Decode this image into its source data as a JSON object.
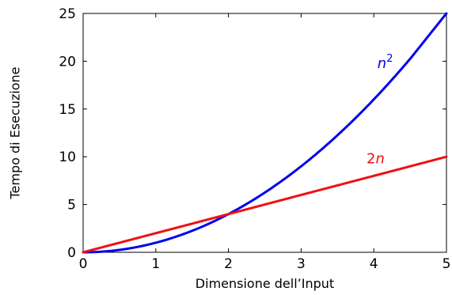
{
  "chart_data": {
    "type": "line",
    "xlabel": "Dimensione dell’Input",
    "ylabel": "Tempo di Esecuzione",
    "xlim": [
      0,
      5
    ],
    "ylim": [
      0,
      25
    ],
    "x_ticks": [
      0,
      1,
      2,
      3,
      4,
      5
    ],
    "y_ticks": [
      0,
      5,
      10,
      15,
      20,
      25
    ],
    "grid": false,
    "series": [
      {
        "name": "n²",
        "label_base": "n",
        "label_sup": "2",
        "color": "#0000ee",
        "x": [
          0,
          0.5,
          1,
          1.5,
          2,
          2.5,
          3,
          3.5,
          4,
          4.5,
          5
        ],
        "y": [
          0,
          0.25,
          1,
          2.25,
          4,
          6.25,
          9,
          12.25,
          16,
          20.25,
          25
        ]
      },
      {
        "name": "2n",
        "label_base": "2",
        "label_sup": "",
        "color": "#ee1111",
        "x": [
          0,
          5
        ],
        "y": [
          0,
          10
        ]
      }
    ],
    "annotations": [
      {
        "series": 0,
        "text_main": "n",
        "text_sup": "2",
        "at_x": 4.05,
        "at_y": 19.8
      },
      {
        "series": 1,
        "text_main": "2n",
        "text_sup": "",
        "at_x": 3.9,
        "at_y": 9.8
      }
    ]
  }
}
